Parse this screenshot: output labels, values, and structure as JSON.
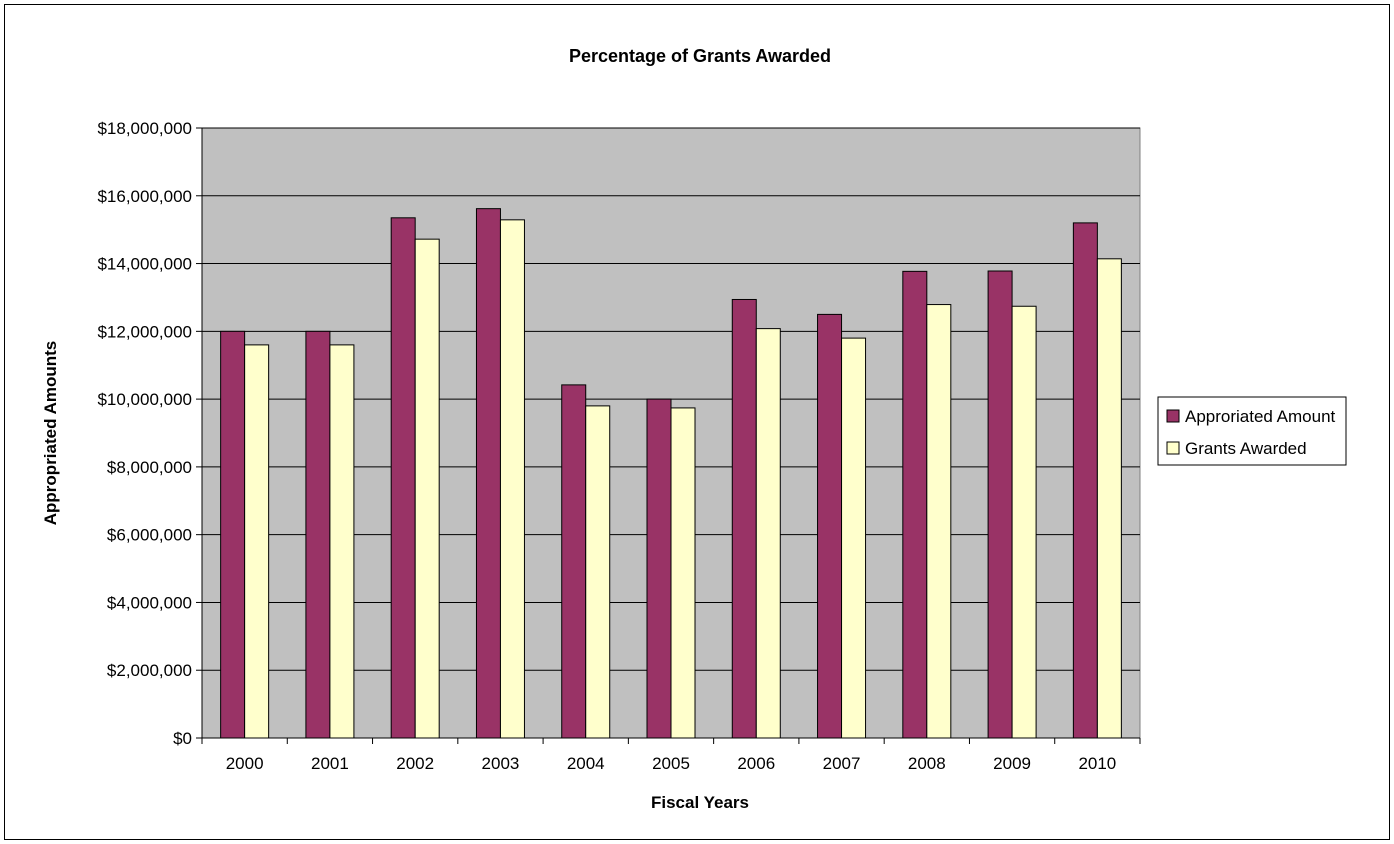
{
  "chart_data": {
    "type": "bar",
    "title": "Percentage of Grants Awarded",
    "xlabel": "Fiscal Years",
    "ylabel": "Appropriated Amounts",
    "categories": [
      "2000",
      "2001",
      "2002",
      "2003",
      "2004",
      "2005",
      "2006",
      "2007",
      "2008",
      "2009",
      "2010"
    ],
    "series": [
      {
        "name": "Approriated Amount",
        "color": "#993366",
        "values": [
          12000000,
          12000000,
          15350000,
          15620000,
          10420000,
          10000000,
          12940000,
          12500000,
          13770000,
          13780000,
          15200000
        ]
      },
      {
        "name": "Grants Awarded",
        "color": "#FFFFCC",
        "values": [
          11600000,
          11600000,
          14720000,
          15290000,
          9800000,
          9740000,
          12080000,
          11800000,
          12790000,
          12740000,
          14140000
        ]
      }
    ],
    "ylim": [
      0,
      18000000
    ],
    "ytick_step": 2000000,
    "y_tick_labels": [
      "$0",
      "$2,000,000",
      "$4,000,000",
      "$6,000,000",
      "$8,000,000",
      "$10,000,000",
      "$12,000,000",
      "$14,000,000",
      "$16,000,000",
      "$18,000,000"
    ],
    "grid": true,
    "plot_background": "#C0C0C0",
    "legend": "right"
  }
}
